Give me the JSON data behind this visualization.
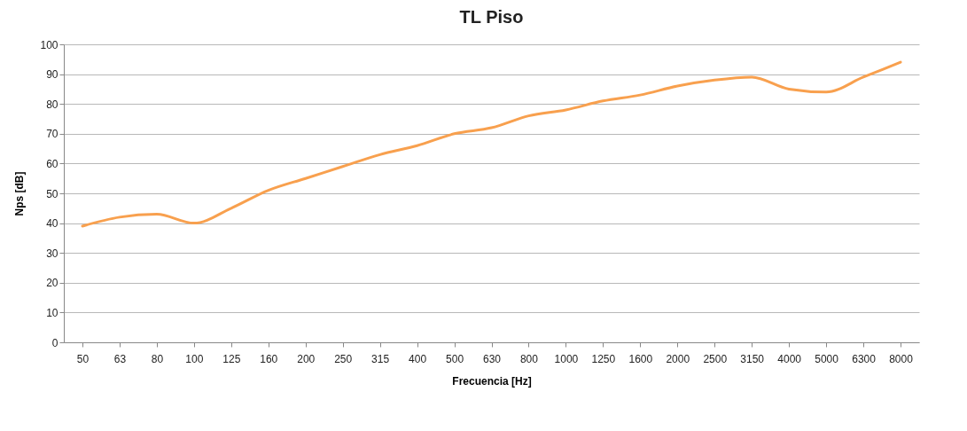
{
  "chart_data": {
    "type": "line",
    "title": "TL Piso",
    "xlabel": "Frecuencia [Hz]",
    "ylabel": "Nps [dB]",
    "categories": [
      "50",
      "63",
      "80",
      "100",
      "125",
      "160",
      "200",
      "250",
      "315",
      "400",
      "500",
      "630",
      "800",
      "1000",
      "1250",
      "1600",
      "2000",
      "2500",
      "3150",
      "4000",
      "5000",
      "6300",
      "8000"
    ],
    "series": [
      {
        "color": "#f8a04e",
        "values": [
          39,
          42,
          43,
          40,
          45,
          51,
          55,
          59,
          63,
          66,
          70,
          72,
          76,
          78,
          81,
          83,
          86,
          88,
          89,
          85,
          84,
          89,
          94
        ]
      }
    ],
    "ylim": [
      0,
      100
    ],
    "yticks": [
      0,
      10,
      20,
      30,
      40,
      50,
      60,
      70,
      80,
      90,
      100
    ],
    "grid": "y",
    "marker": "none",
    "line_style": "solid"
  }
}
